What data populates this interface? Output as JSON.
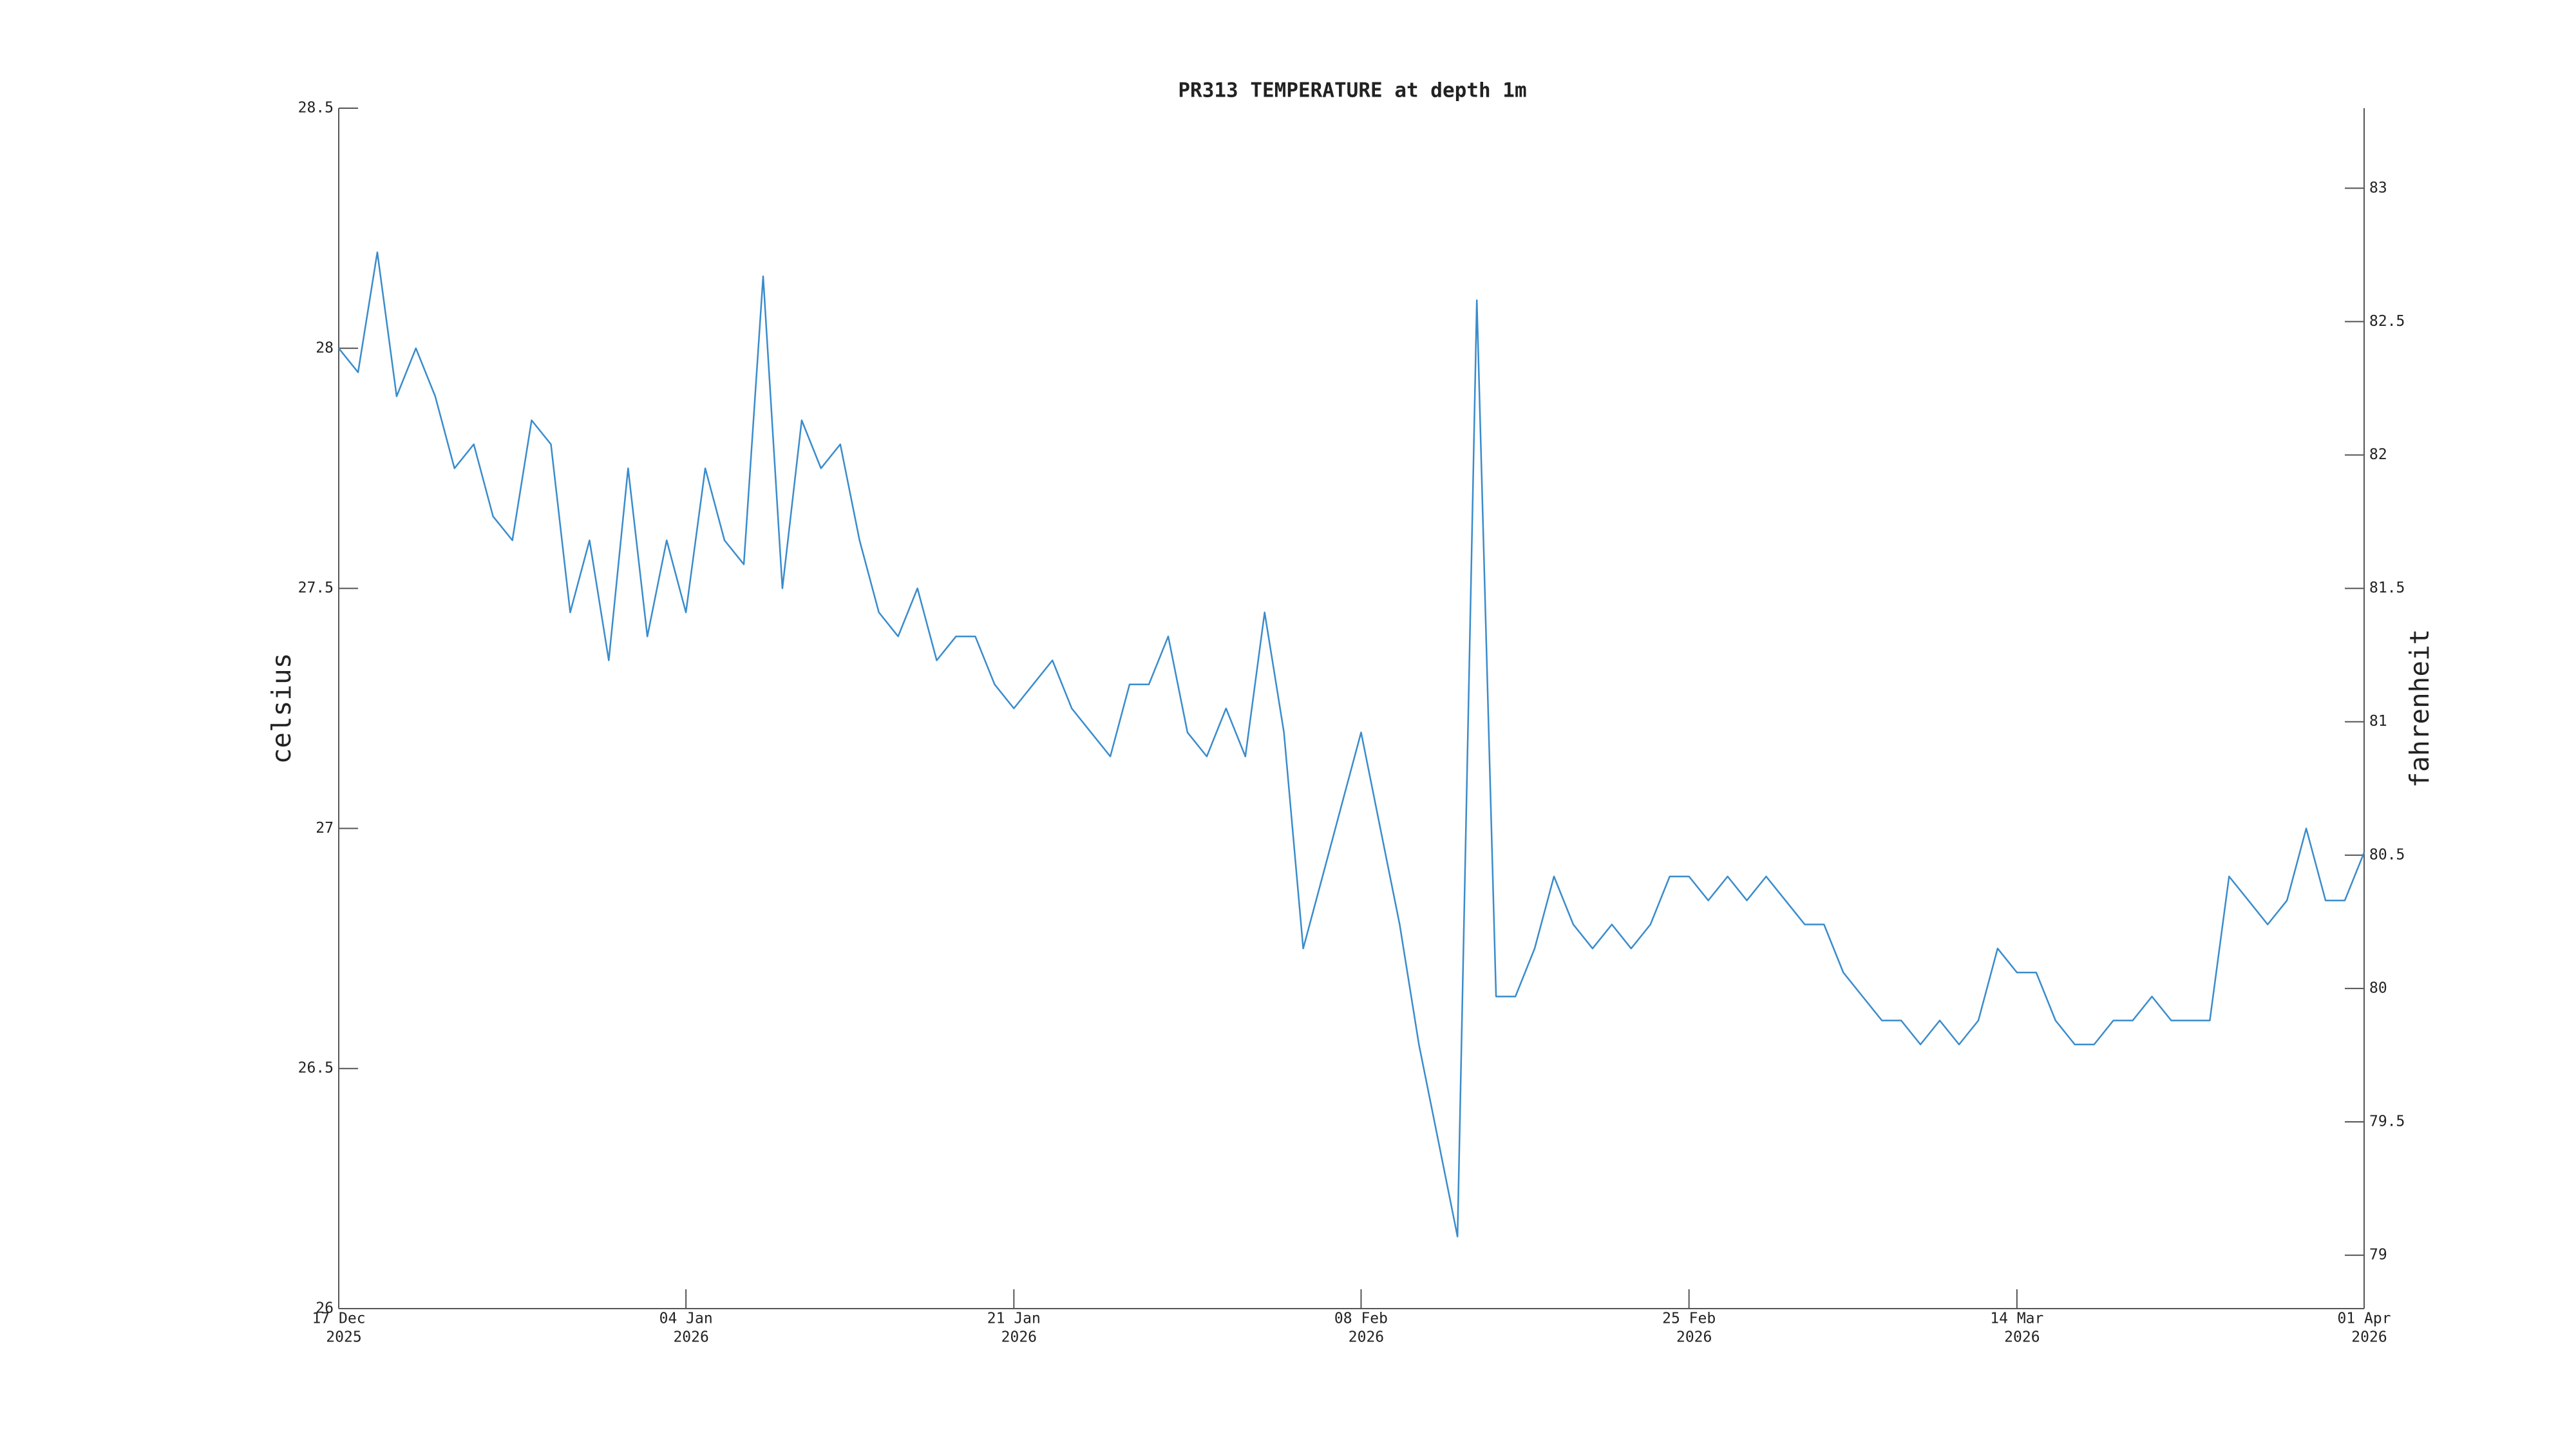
{
  "chart_data": {
    "type": "line",
    "title": "PR313 TEMPERATURE at depth 1m",
    "ylabel": "celsius",
    "y2label": "fahrenheit",
    "x": [
      "2025-12-17",
      "2025-12-18",
      "2025-12-19",
      "2025-12-20",
      "2025-12-21",
      "2025-12-22",
      "2025-12-23",
      "2025-12-24",
      "2025-12-25",
      "2025-12-26",
      "2025-12-27",
      "2025-12-28",
      "2025-12-29",
      "2025-12-30",
      "2025-12-31",
      "2026-01-01",
      "2026-01-02",
      "2026-01-03",
      "2026-01-04",
      "2026-01-05",
      "2026-01-06",
      "2026-01-07",
      "2026-01-08",
      "2026-01-09",
      "2026-01-10",
      "2026-01-11",
      "2026-01-12",
      "2026-01-13",
      "2026-01-14",
      "2026-01-15",
      "2026-01-16",
      "2026-01-17",
      "2026-01-18",
      "2026-01-19",
      "2026-01-20",
      "2026-01-21",
      "2026-01-22",
      "2026-01-23",
      "2026-01-24",
      "2026-01-25",
      "2026-01-26",
      "2026-01-27",
      "2026-01-28",
      "2026-01-29",
      "2026-01-30",
      "2026-01-31",
      "2026-02-01",
      "2026-02-02",
      "2026-02-03",
      "2026-02-04",
      "2026-02-05",
      "2026-02-06",
      "2026-02-07",
      "2026-02-08",
      "2026-02-09",
      "2026-02-10",
      "2026-02-11",
      "2026-02-12",
      "2026-02-13",
      "2026-02-14",
      "2026-02-15",
      "2026-02-16",
      "2026-02-17",
      "2026-02-18",
      "2026-02-19",
      "2026-02-20",
      "2026-02-21",
      "2026-02-22",
      "2026-02-23",
      "2026-02-24",
      "2026-02-25",
      "2026-02-26",
      "2026-02-27",
      "2026-02-28",
      "2026-03-01",
      "2026-03-02",
      "2026-03-03",
      "2026-03-04",
      "2026-03-05",
      "2026-03-06",
      "2026-03-07",
      "2026-03-08",
      "2026-03-09",
      "2026-03-10",
      "2026-03-11",
      "2026-03-12",
      "2026-03-13",
      "2026-03-14",
      "2026-03-15",
      "2026-03-16",
      "2026-03-17",
      "2026-03-18",
      "2026-03-19",
      "2026-03-20",
      "2026-03-21",
      "2026-03-22",
      "2026-03-23",
      "2026-03-24",
      "2026-03-25",
      "2026-03-26",
      "2026-03-27",
      "2026-03-28",
      "2026-03-29",
      "2026-03-30",
      "2026-03-31",
      "2026-04-01"
    ],
    "series": [
      {
        "color": "#3a8ccc",
        "values": [
          28.0,
          27.95,
          28.2,
          27.9,
          28.0,
          27.9,
          27.75,
          27.8,
          27.65,
          27.6,
          27.85,
          27.8,
          27.45,
          27.6,
          27.35,
          27.75,
          27.4,
          27.6,
          27.45,
          27.75,
          27.6,
          27.55,
          28.15,
          27.5,
          27.85,
          27.75,
          27.8,
          27.6,
          27.45,
          27.4,
          27.5,
          27.35,
          27.4,
          27.4,
          27.3,
          27.25,
          27.3,
          27.35,
          27.25,
          27.2,
          27.15,
          27.3,
          27.3,
          27.4,
          27.2,
          27.15,
          27.25,
          27.15,
          27.45,
          27.2,
          26.75,
          26.9,
          27.05,
          27.2,
          27.0,
          26.8,
          26.55,
          26.35,
          26.15,
          28.1,
          26.65,
          26.65,
          26.75,
          26.9,
          26.8,
          26.75,
          26.8,
          26.75,
          26.8,
          26.9,
          26.9,
          26.85,
          26.9,
          26.85,
          26.9,
          26.85,
          26.8,
          26.8,
          26.7,
          26.65,
          26.6,
          26.6,
          26.55,
          26.6,
          26.55,
          26.6,
          26.75,
          26.7,
          26.7,
          26.6,
          26.55,
          26.55,
          26.6,
          26.6,
          26.65,
          26.6,
          26.6,
          26.6,
          26.9,
          26.85,
          26.8,
          26.85,
          27.0,
          26.85,
          26.85,
          26.95
        ]
      }
    ],
    "xlim": [
      "2025-12-17",
      "2026-04-01"
    ],
    "xticks": [
      {
        "value": "2025-12-17",
        "label": [
          "17 Dec",
          "2025"
        ]
      },
      {
        "value": "2026-01-04",
        "label": [
          "04 Jan",
          "2026"
        ]
      },
      {
        "value": "2026-01-21",
        "label": [
          "21 Jan",
          "2026"
        ]
      },
      {
        "value": "2026-02-08",
        "label": [
          "08 Feb",
          "2026"
        ]
      },
      {
        "value": "2026-02-25",
        "label": [
          "25 Feb",
          "2026"
        ]
      },
      {
        "value": "2026-03-14",
        "label": [
          "14 Mar",
          "2026"
        ]
      },
      {
        "value": "2026-04-01",
        "label": [
          "01 Apr",
          "2026"
        ]
      }
    ],
    "ylim": [
      26,
      28.5
    ],
    "yticks": [
      26,
      26.5,
      27,
      27.5,
      28,
      28.5
    ],
    "y2lim": [
      78.8,
      83.3
    ],
    "y2ticks": [
      79,
      79.5,
      80,
      80.5,
      81,
      81.5,
      82,
      82.5,
      83
    ]
  }
}
